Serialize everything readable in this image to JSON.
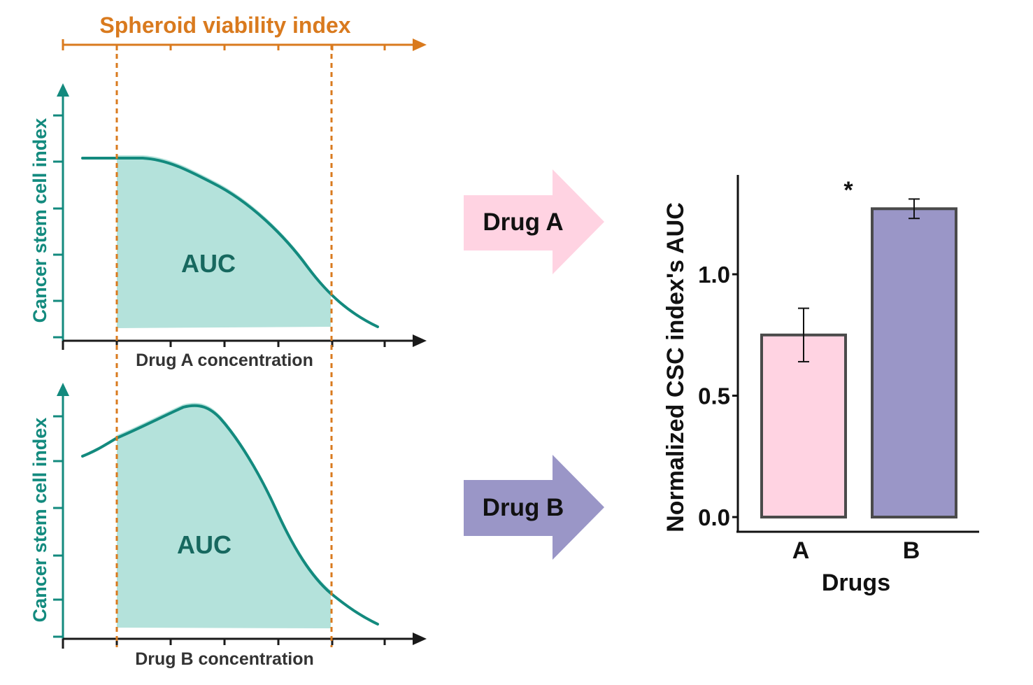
{
  "colors": {
    "orange": "#d97a1e",
    "teal": "#138a7e",
    "teal_fill": "#b4e2db",
    "axis": "#1a1a1a",
    "pink": "#ffd3e2",
    "lavender": "#9a96c7",
    "bar_edge": "#4a4a4a"
  },
  "viability_axis": {
    "label": "Spheroid viability index"
  },
  "panel_a": {
    "ylabel": "Cancer stem cell index",
    "xlabel": "Drug A concentration",
    "auc_label": "AUC"
  },
  "panel_b": {
    "ylabel": "Cancer stem cell index",
    "xlabel": "Drug B concentration",
    "auc_label": "AUC"
  },
  "arrows": {
    "drug_a": "Drug A",
    "drug_b": "Drug B"
  },
  "chart_data": {
    "type": "bar",
    "categories": [
      "A",
      "B"
    ],
    "values": [
      0.75,
      1.27
    ],
    "errors": [
      0.11,
      0.04
    ],
    "ylabel": "Normalized CSC index's AUC",
    "xlabel": "Drugs",
    "yticks": [
      "0.0",
      "0.5",
      "1.0"
    ],
    "ytick_values": [
      0.0,
      0.5,
      1.0
    ],
    "ylim": [
      0,
      1.35
    ],
    "significance": "*",
    "bar_colors": [
      "#ffd3e2",
      "#9a96c7"
    ]
  }
}
